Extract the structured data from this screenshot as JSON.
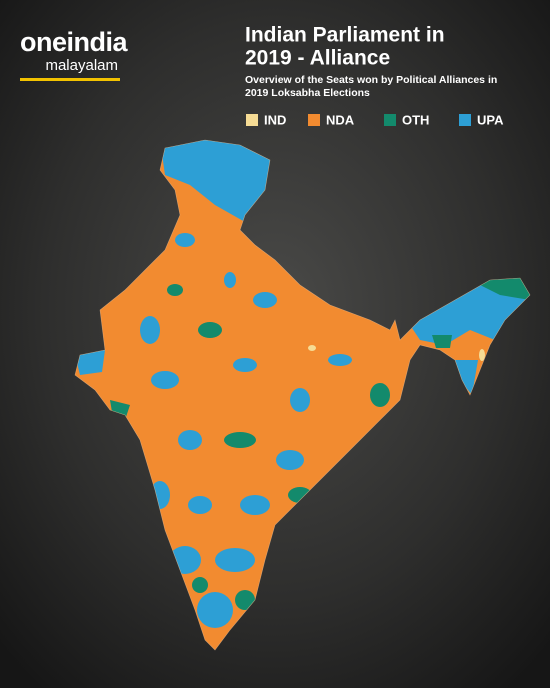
{
  "logo": {
    "name": "oneindia",
    "edition": "malayalam"
  },
  "title": [
    "Indian Parliament in",
    "2019 - Alliance"
  ],
  "subtitle": [
    "Overview of the Seats won by Political Alliances in",
    "2019 Loksabha Elections"
  ],
  "legend": [
    {
      "label": "IND",
      "color": "#f6dc95"
    },
    {
      "label": "NDA",
      "color": "#f28b30"
    },
    {
      "label": "OTH",
      "color": "#138a6c"
    },
    {
      "label": "UPA",
      "color": "#2d9fd5"
    }
  ]
}
